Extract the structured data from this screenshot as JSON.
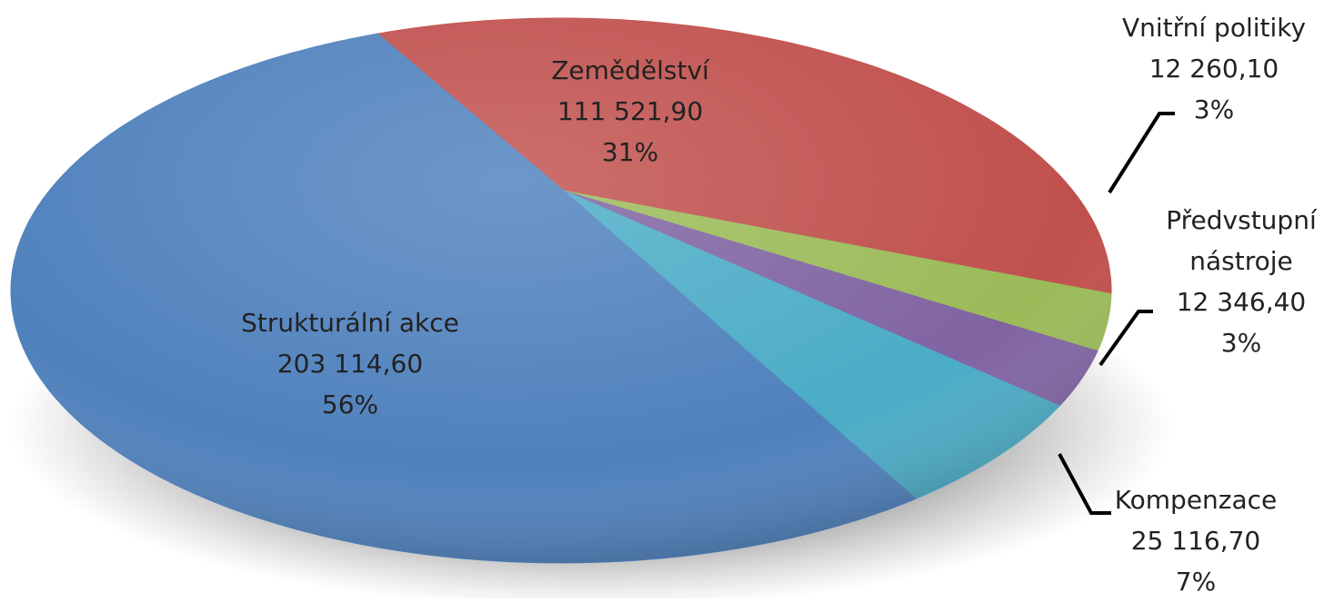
{
  "chart_data": {
    "type": "pie",
    "categories": [
      "Strukturální akce",
      "Zemědělství",
      "Vnitřní politiky",
      "Předvstupní nástroje",
      "Kompenzace"
    ],
    "values": [
      203114.6,
      111521.9,
      12260.1,
      12346.4,
      25116.7
    ],
    "value_labels": [
      "203 114,60",
      "111 521,90",
      "12 260,10",
      "12 346,40",
      "25 116,70"
    ],
    "percentages": [
      56,
      31,
      3,
      3,
      7
    ],
    "percentage_labels": [
      "56%",
      "31%",
      "3%",
      "3%",
      "7%"
    ],
    "colors": [
      "#4f81bd",
      "#c0504d",
      "#9bbb59",
      "#8064a2",
      "#4bacc6"
    ]
  }
}
